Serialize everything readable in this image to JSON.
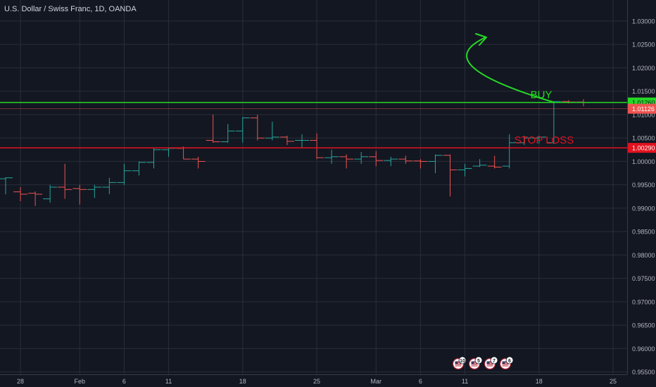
{
  "header": {
    "title": "U.S. Dollar / Swiss Franc, 1D, OANDA"
  },
  "colors": {
    "background": "#131722",
    "grid": "#2a2e39",
    "text": "#b2b5be",
    "up": "#26a69a",
    "down": "#ef5350",
    "buy_line": "#26d926",
    "stop_line": "#e3121f",
    "last_price_line": "#ef5350"
  },
  "chart_data": {
    "type": "ohlc",
    "title": "U.S. Dollar / Swiss Franc, 1D, OANDA",
    "xlabel": "",
    "ylabel": "",
    "ylim": [
      0.9545,
      1.0345
    ],
    "grid": true,
    "y_ticks": [
      "1.03000",
      "1.02500",
      "1.02000",
      "1.01500",
      "1.01000",
      "1.00500",
      "1.00000",
      "0.99500",
      "0.99000",
      "0.98500",
      "0.98000",
      "0.97500",
      "0.97000",
      "0.96500",
      "0.96000",
      "0.95500"
    ],
    "y_tick_values": [
      1.03,
      1.025,
      1.02,
      1.015,
      1.01,
      1.005,
      1.0,
      0.995,
      0.99,
      0.985,
      0.98,
      0.975,
      0.97,
      0.965,
      0.96,
      0.955
    ],
    "x_ticks": [
      {
        "label": "28",
        "bar": 1
      },
      {
        "label": "Feb",
        "bar": 5
      },
      {
        "label": "6",
        "bar": 8
      },
      {
        "label": "11",
        "bar": 11
      },
      {
        "label": "18",
        "bar": 16
      },
      {
        "label": "25",
        "bar": 21
      },
      {
        "label": "Mar",
        "bar": 25
      },
      {
        "label": "6",
        "bar": 28
      },
      {
        "label": "11",
        "bar": 31
      },
      {
        "label": "18",
        "bar": 36
      },
      {
        "label": "25",
        "bar": 41
      }
    ],
    "bars": [
      {
        "date": "Jan 24",
        "open": 0.9963,
        "high": 0.9966,
        "low": 0.993,
        "close": 0.9965
      },
      {
        "date": "Jan 25",
        "open": 0.9935,
        "high": 0.9945,
        "low": 0.9915,
        "close": 0.993
      },
      {
        "date": "Jan 28",
        "open": 0.9932,
        "high": 0.9936,
        "low": 0.9905,
        "close": 0.993
      },
      {
        "date": "Jan 29",
        "open": 0.992,
        "high": 0.995,
        "low": 0.9912,
        "close": 0.9945
      },
      {
        "date": "Jan 30",
        "open": 0.9945,
        "high": 0.9995,
        "low": 0.992,
        "close": 0.994
      },
      {
        "date": "Jan 31",
        "open": 0.9942,
        "high": 0.995,
        "low": 0.9908,
        "close": 0.994
      },
      {
        "date": "Feb 1",
        "open": 0.994,
        "high": 0.995,
        "low": 0.9922,
        "close": 0.9945
      },
      {
        "date": "Feb 4",
        "open": 0.9945,
        "high": 0.9965,
        "low": 0.993,
        "close": 0.9955
      },
      {
        "date": "Feb 5",
        "open": 0.9955,
        "high": 0.9995,
        "low": 0.995,
        "close": 0.998
      },
      {
        "date": "Feb 6",
        "open": 0.998,
        "high": 1.0,
        "low": 0.997,
        "close": 0.9998
      },
      {
        "date": "Feb 7",
        "open": 0.9998,
        "high": 1.003,
        "low": 0.9985,
        "close": 1.0025
      },
      {
        "date": "Feb 8",
        "open": 1.0025,
        "high": 1.003,
        "low": 1.001,
        "close": 1.0028
      },
      {
        "date": "Feb 11",
        "open": 1.0028,
        "high": 1.0032,
        "low": 1.0005,
        "close": 1.0005
      },
      {
        "date": "Feb 12",
        "open": 1.0005,
        "high": 1.001,
        "low": 0.9985,
        "close": 1.0
      },
      {
        "date": "Feb 13",
        "open": 1.0045,
        "high": 1.01,
        "low": 1.004,
        "close": 1.0042
      },
      {
        "date": "Feb 14",
        "open": 1.0042,
        "high": 1.008,
        "low": 1.004,
        "close": 1.0065
      },
      {
        "date": "Feb 15",
        "open": 1.0065,
        "high": 1.0095,
        "low": 1.004,
        "close": 1.0093
      },
      {
        "date": "Feb 18",
        "open": 1.0093,
        "high": 1.01,
        "low": 1.0045,
        "close": 1.005
      },
      {
        "date": "Feb 19",
        "open": 1.005,
        "high": 1.0085,
        "low": 1.0045,
        "close": 1.0052
      },
      {
        "date": "Feb 20",
        "open": 1.0052,
        "high": 1.0055,
        "low": 1.0035,
        "close": 1.0043
      },
      {
        "date": "Feb 21",
        "open": 1.0045,
        "high": 1.0058,
        "low": 1.0028,
        "close": 1.0045
      },
      {
        "date": "Feb 22",
        "open": 1.0045,
        "high": 1.006,
        "low": 1.0005,
        "close": 1.0008
      },
      {
        "date": "Feb 25",
        "open": 1.0008,
        "high": 1.0025,
        "low": 0.9995,
        "close": 1.001
      },
      {
        "date": "Feb 26",
        "open": 1.001,
        "high": 1.0015,
        "low": 0.9985,
        "close": 1.0005
      },
      {
        "date": "Feb 27",
        "open": 1.0005,
        "high": 1.002,
        "low": 0.9995,
        "close": 1.001
      },
      {
        "date": "Feb 28",
        "open": 1.001,
        "high": 1.0022,
        "low": 0.999,
        "close": 1.0002
      },
      {
        "date": "Mar 1",
        "open": 1.0002,
        "high": 1.001,
        "low": 0.999,
        "close": 1.0005
      },
      {
        "date": "Mar 4",
        "open": 1.0005,
        "high": 1.0012,
        "low": 0.9995,
        "close": 1.0001
      },
      {
        "date": "Mar 5",
        "open": 1.0001,
        "high": 1.0005,
        "low": 0.9985,
        "close": 1.0
      },
      {
        "date": "Mar 6",
        "open": 1.0,
        "high": 1.0015,
        "low": 0.9975,
        "close": 1.0013
      },
      {
        "date": "Mar 7",
        "open": 1.0013,
        "high": 1.0015,
        "low": 0.9925,
        "close": 0.9982
      },
      {
        "date": "Mar 8",
        "open": 0.9982,
        "high": 0.9995,
        "low": 0.9968,
        "close": 0.9985
      },
      {
        "date": "Mar 11",
        "open": 0.999,
        "high": 1.0005,
        "low": 0.9988,
        "close": 0.9992
      },
      {
        "date": "Mar 12",
        "open": 0.999,
        "high": 1.0012,
        "low": 0.9985,
        "close": 0.9988
      },
      {
        "date": "Mar 13",
        "open": 0.999,
        "high": 1.0058,
        "low": 0.9985,
        "close": 1.004
      },
      {
        "date": "Mar 14",
        "open": 1.004,
        "high": 1.0055,
        "low": 1.0035,
        "close": 1.005
      },
      {
        "date": "Mar 15",
        "open": 1.005,
        "high": 1.0055,
        "low": 1.0038,
        "close": 1.0052
      },
      {
        "date": "Mar 18",
        "open": 1.004,
        "high": 1.0128,
        "low": 1.0037,
        "close": 1.0128
      },
      {
        "date": "Mar 19",
        "open": 1.0128,
        "high": 1.0131,
        "low": 1.0124,
        "close": 1.0127
      },
      {
        "date": "Mar 20",
        "open": 1.0127,
        "high": 1.0133,
        "low": 1.0118,
        "close": 1.0126
      }
    ],
    "levels": [
      {
        "name": "BUY",
        "value": 1.0126,
        "label": "1.01260",
        "color": "#26d926"
      },
      {
        "name": "STOP LOSS",
        "value": 1.0029,
        "label": "1.00290",
        "color": "#e3121f"
      }
    ],
    "last_price": {
      "value": 1.01126,
      "label": "1.01126",
      "color": "#ef5350"
    },
    "annotations": [
      {
        "text": "BUY",
        "color": "#26d926"
      },
      {
        "text": "STOP LOSS",
        "color": "#e3121f"
      }
    ],
    "events": [
      {
        "icon": "us-flag-icon",
        "count": "10"
      },
      {
        "icon": "us-flag-icon",
        "count": "5"
      },
      {
        "icon": "us-flag-icon",
        "count": "7"
      },
      {
        "icon": "us-flag-icon",
        "count": "6"
      }
    ]
  }
}
